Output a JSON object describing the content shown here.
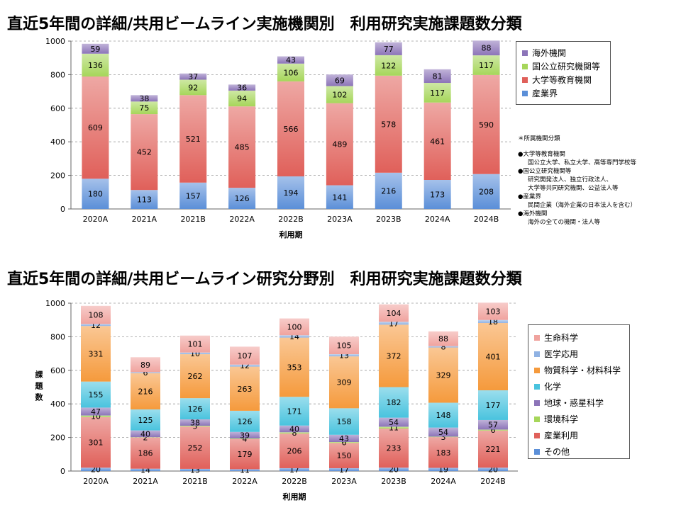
{
  "charts": [
    {
      "title": "直近5年間の詳細/共用ビームライン実施機関別　利用研究実施課題数分類",
      "chart_data": {
        "type": "bar",
        "stacked": true,
        "categories": [
          "2020A",
          "2021A",
          "2021B",
          "2022A",
          "2022B",
          "2023A",
          "2023B",
          "2024A",
          "2024B"
        ],
        "xlabel": "利用期",
        "ylabel": "",
        "ylim": [
          0,
          1000
        ],
        "yticks": [
          0,
          200,
          400,
          600,
          800,
          1000
        ],
        "grid": "horizontal dashed",
        "legend_position": "right",
        "series": [
          {
            "name": "産業界",
            "values": [
              180,
              113,
              157,
              126,
              194,
              141,
              216,
              173,
              208
            ],
            "color": "#5b8fd8"
          },
          {
            "name": "大学等教育機関",
            "values": [
              609,
              452,
              521,
              485,
              566,
              489,
              578,
              461,
              590
            ],
            "color": "#e0605a"
          },
          {
            "name": "国公立研究機関等",
            "values": [
              136,
              75,
              92,
              94,
              106,
              102,
              122,
              117,
              117
            ],
            "color": "#a6d65a"
          },
          {
            "name": "海外機関",
            "values": [
              59,
              38,
              37,
              36,
              43,
              69,
              77,
              81,
              88
            ],
            "color": "#8c74b8"
          }
        ]
      },
      "note": {
        "heading": "＊所属機関分類",
        "items": [
          {
            "category": "●大学等教育機関",
            "lines": [
              "国公立大学、私立大学、高等専門学校等"
            ]
          },
          {
            "category": "●国公立研究機関等",
            "lines": [
              "研究開発法人、独立行政法人、",
              "大学等共同研究機関、公益法人等"
            ]
          },
          {
            "category": "●産業界",
            "lines": [
              "民間企業（海外企業の日本法人を含む）"
            ]
          },
          {
            "category": "●海外機関",
            "lines": [
              "海外の全ての機関・法人等"
            ]
          }
        ]
      }
    },
    {
      "title": "直近5年間の詳細/共用ビームライン研究分野別　利用研究実施課題数分類",
      "chart_data": {
        "type": "bar",
        "stacked": true,
        "categories": [
          "2020A",
          "2021A",
          "2021B",
          "2022A",
          "2022B",
          "2023A",
          "2023B",
          "2024A",
          "2024B"
        ],
        "xlabel": "利用期",
        "ylabel": "課題数",
        "ylim": [
          0,
          1000
        ],
        "yticks": [
          0,
          200,
          400,
          600,
          800,
          1000
        ],
        "grid": "horizontal dashed",
        "legend_position": "right",
        "series": [
          {
            "name": "その他",
            "values": [
              20,
              14,
              13,
              11,
              17,
              17,
              20,
              19,
              20
            ],
            "color": "#5b8fd8"
          },
          {
            "name": "産業利用",
            "values": [
              301,
              186,
              252,
              179,
              206,
              150,
              233,
              183,
              221
            ],
            "color": "#e0605a"
          },
          {
            "name": "環境科学",
            "values": [
              10,
              2,
              5,
              4,
              8,
              6,
              11,
              3,
              6
            ],
            "color": "#a6d65a"
          },
          {
            "name": "地球・惑星科学",
            "values": [
              47,
              40,
              38,
              39,
              40,
              43,
              54,
              54,
              57
            ],
            "color": "#8c74b8"
          },
          {
            "name": "化学",
            "values": [
              155,
              125,
              126,
              126,
              171,
              158,
              182,
              148,
              177
            ],
            "color": "#49c3de"
          },
          {
            "name": "物質科学・材料科学",
            "values": [
              331,
              216,
              262,
              263,
              353,
              309,
              372,
              329,
              401
            ],
            "color": "#f59a3c"
          },
          {
            "name": "医学応用",
            "values": [
              12,
              6,
              10,
              12,
              14,
              13,
              17,
              8,
              18
            ],
            "color": "#8fb2e3"
          },
          {
            "name": "生命科学",
            "values": [
              108,
              89,
              101,
              107,
              100,
              105,
              104,
              88,
              103
            ],
            "color": "#f0a39e"
          }
        ]
      }
    }
  ]
}
